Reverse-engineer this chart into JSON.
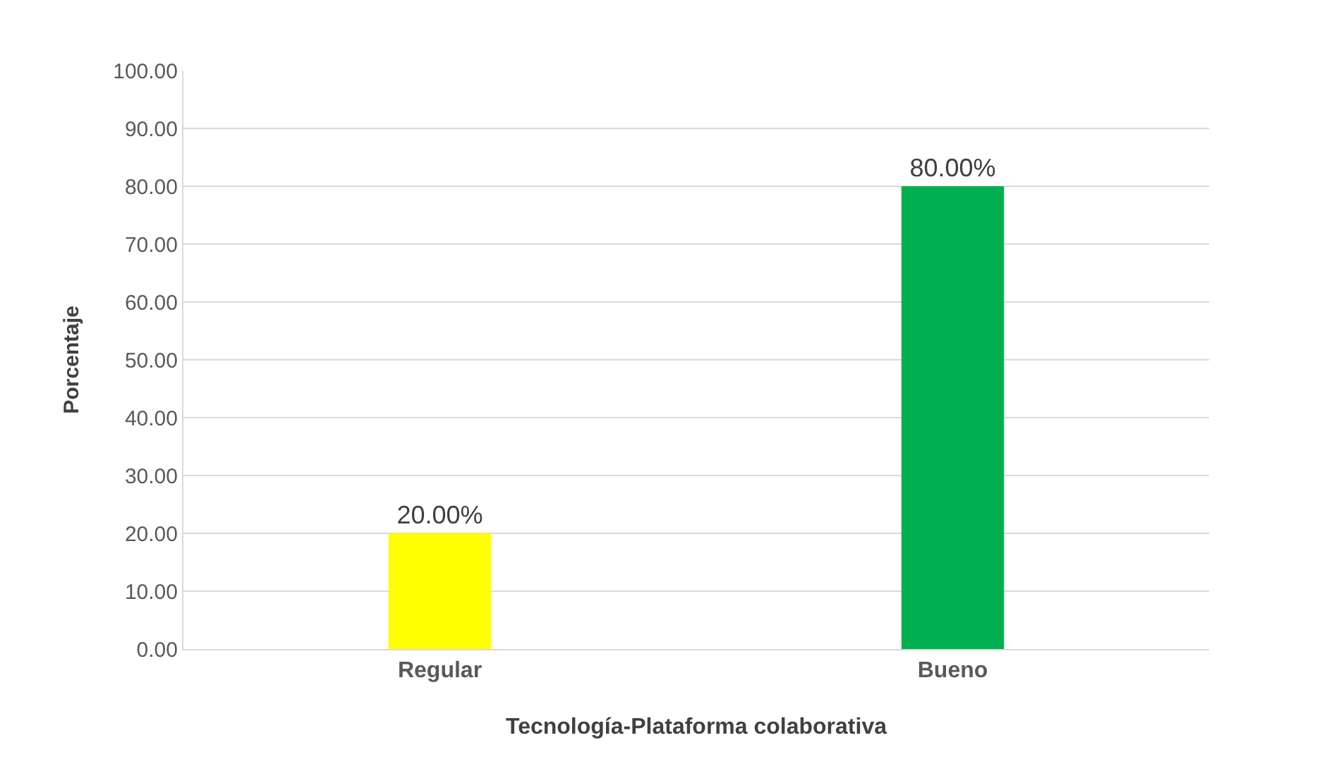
{
  "chart_data": {
    "type": "bar",
    "xlabel": "Tecnología-Plataforma colaborativa",
    "ylabel": "Porcentaje",
    "categories": [
      "Regular",
      "Bueno"
    ],
    "values": [
      20,
      80
    ],
    "colors": [
      "#ffff00",
      "#00b050"
    ],
    "value_labels": [
      "20.00%",
      "80.00%"
    ],
    "ylim": [
      0,
      100
    ],
    "yticks": [
      {
        "value": 0,
        "label": "0.00"
      },
      {
        "value": 10,
        "label": "10.00"
      },
      {
        "value": 20,
        "label": "20.00"
      },
      {
        "value": 30,
        "label": "30.00"
      },
      {
        "value": 40,
        "label": "40.00"
      },
      {
        "value": 50,
        "label": "50.00"
      },
      {
        "value": 60,
        "label": "60.00"
      },
      {
        "value": 70,
        "label": "70.00"
      },
      {
        "value": 80,
        "label": "80.00"
      },
      {
        "value": 90,
        "label": "90.00"
      },
      {
        "value": 100,
        "label": "100.00"
      }
    ],
    "grid": "y"
  }
}
